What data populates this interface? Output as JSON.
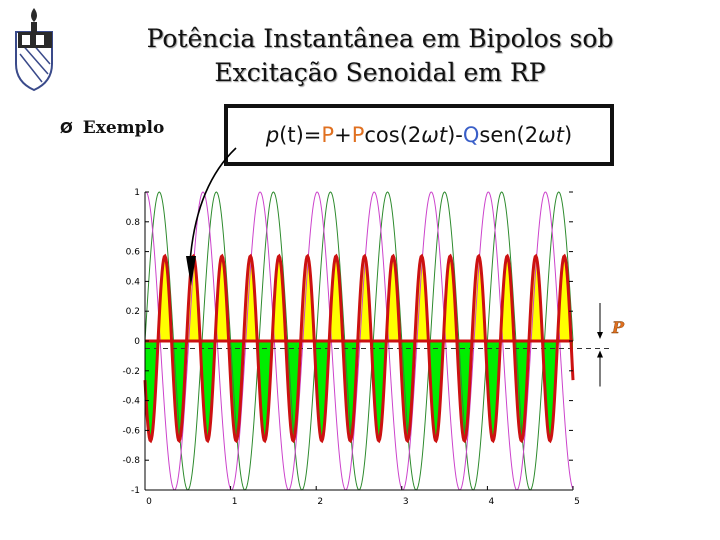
{
  "slide": {
    "title_line1": "Potência Instantânea em Bipolos sob",
    "title_line2": "Excitação Senoidal em RP",
    "bullet_label": "Exemplo",
    "bullet_marker": "Ø"
  },
  "formula": {
    "lhs_p": "p",
    "lhs_t": "(t)",
    "eq": " =",
    "P1": "P",
    "plus": "+",
    "P2": "P",
    "cos": "cos(2",
    "omega_t1": "ωt",
    "close1": ")",
    "minus": "-",
    "Q": "Q",
    "sen": "sen(2",
    "omega_t2": "ωt",
    "close2": ")"
  },
  "annotation": {
    "P_label": "P"
  },
  "colors": {
    "voltage": "#2e8b2e",
    "current": "#cc44cc",
    "power": "#cc1111",
    "positive_fill": "#ffff00",
    "negative_fill": "#00ee00",
    "P_color": "#e07020",
    "Q_color": "#3a5fc8"
  },
  "chart_data": {
    "type": "line",
    "title": "",
    "xlabel": "",
    "ylabel": "",
    "xlim": [
      0,
      5
    ],
    "ylim": [
      -1,
      1
    ],
    "x_ticks": [
      0,
      1,
      2,
      3,
      4,
      5
    ],
    "y_ticks": [
      -1,
      -0.8,
      -0.6,
      -0.4,
      -0.2,
      0,
      0.2,
      0.4,
      0.6,
      0.8,
      1
    ],
    "x_tick_labels": [
      "0",
      "1",
      "2",
      "3",
      "4",
      "5"
    ],
    "y_tick_labels": [
      "-1",
      "-0.8",
      "-0.6",
      "-0.4",
      "-0.2",
      "0",
      "0.2",
      "0.4",
      "0.6",
      "0.8",
      "1"
    ],
    "grid": false,
    "average_power_P": -0.05,
    "series": [
      {
        "role": "voltage",
        "amplitude": 1,
        "frequency": 1.5,
        "phase_deg": 0
      },
      {
        "role": "current",
        "amplitude": 1,
        "frequency": 1.5,
        "phase_deg": 84
      },
      {
        "role": "power",
        "amplitude": 0.62,
        "frequency": 3.0,
        "offset": -0.05
      }
    ]
  }
}
